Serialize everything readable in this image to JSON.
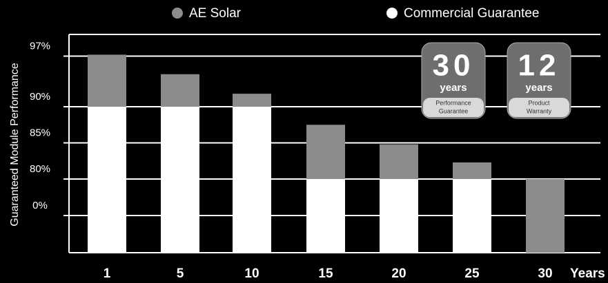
{
  "chart_data": {
    "type": "bar",
    "y_label": "Guaranteed Module Performance",
    "x_label": "Years",
    "categories": [
      "1",
      "5",
      "10",
      "15",
      "20",
      "25",
      "30"
    ],
    "series": [
      {
        "name": "AE Solar",
        "color": "#8c8c8c",
        "values": [
          97.2,
          94.5,
          91.8,
          87.5,
          84.8,
          82.3,
          80
        ]
      },
      {
        "name": "Commercial Guarantee",
        "color": "#ffffff",
        "values": [
          90,
          90,
          90,
          80,
          80,
          80,
          null
        ]
      }
    ],
    "ylim": [
      0,
      97
    ],
    "yticks": [
      {
        "value": 97,
        "label": "97%"
      },
      {
        "value": 90,
        "label": "90%"
      },
      {
        "value": 85,
        "label": "85%"
      },
      {
        "value": 80,
        "label": "80%"
      },
      {
        "value": 0,
        "label": "0%"
      }
    ],
    "grid": true,
    "badges": [
      {
        "number": "30",
        "unit": "years",
        "caption": [
          "Performance",
          "Guarantee"
        ]
      },
      {
        "number": "12",
        "unit": "years",
        "caption": [
          "Product",
          "Warranty"
        ]
      }
    ]
  }
}
